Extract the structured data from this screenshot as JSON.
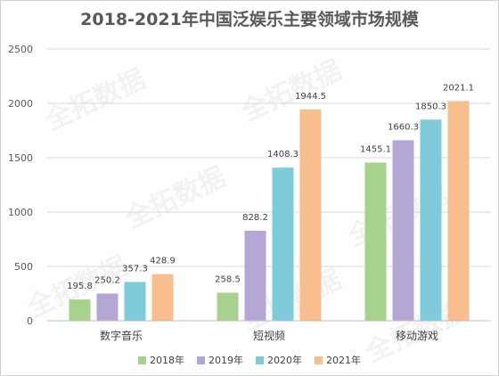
{
  "chart_data": {
    "type": "bar",
    "title": "2018-2021年中国泛娱乐主要领域市场规模",
    "categories": [
      "数字音乐",
      "短视频",
      "移动游戏"
    ],
    "series": [
      {
        "name": "2018年",
        "color": "#a9d18e",
        "values": [
          195.8,
          258.5,
          1455.1
        ]
      },
      {
        "name": "2019年",
        "color": "#b4a7d6",
        "values": [
          250.2,
          828.2,
          1660.3
        ]
      },
      {
        "name": "2020年",
        "color": "#7ecbdb",
        "values": [
          357.3,
          1408.3,
          1850.3
        ]
      },
      {
        "name": "2021年",
        "color": "#f9be8e",
        "values": [
          428.9,
          1944.5,
          2021.1
        ]
      }
    ],
    "ylim": [
      0,
      2500
    ],
    "yticks": [
      0,
      500,
      1000,
      1500,
      2000,
      2500
    ],
    "grid": true,
    "legend_position": "bottom"
  },
  "watermark": "全拓数据"
}
